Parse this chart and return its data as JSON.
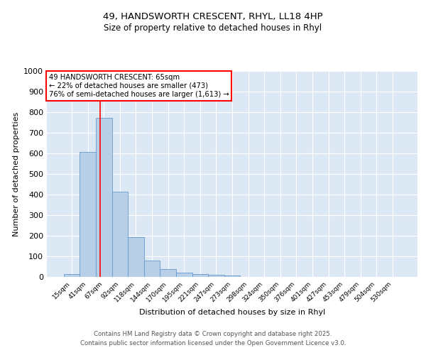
{
  "title_line1": "49, HANDSWORTH CRESCENT, RHYL, LL18 4HP",
  "title_line2": "Size of property relative to detached houses in Rhyl",
  "xlabel": "Distribution of detached houses by size in Rhyl",
  "ylabel": "Number of detached properties",
  "bin_labels": [
    "15sqm",
    "41sqm",
    "67sqm",
    "92sqm",
    "118sqm",
    "144sqm",
    "170sqm",
    "195sqm",
    "221sqm",
    "247sqm",
    "273sqm",
    "298sqm",
    "324sqm",
    "350sqm",
    "376sqm",
    "401sqm",
    "427sqm",
    "453sqm",
    "479sqm",
    "504sqm",
    "530sqm"
  ],
  "bar_values": [
    15,
    608,
    772,
    413,
    193,
    80,
    37,
    20,
    14,
    10,
    7,
    0,
    0,
    0,
    0,
    0,
    0,
    0,
    0,
    0,
    0
  ],
  "bar_color": "#b8cfe8",
  "bar_edge_color": "#6699cc",
  "vline_x_index": 1.77,
  "vline_color": "red",
  "annotation_text": "49 HANDSWORTH CRESCENT: 65sqm\n← 22% of detached houses are smaller (473)\n76% of semi-detached houses are larger (1,613) →",
  "annotation_box_color": "white",
  "annotation_box_edge": "red",
  "ylim": [
    0,
    1000
  ],
  "yticks": [
    0,
    100,
    200,
    300,
    400,
    500,
    600,
    700,
    800,
    900,
    1000
  ],
  "background_color": "#dde8f5",
  "grid_color": "white",
  "footer_line1": "Contains HM Land Registry data © Crown copyright and database right 2025.",
  "footer_line2": "Contains public sector information licensed under the Open Government Licence v3.0."
}
